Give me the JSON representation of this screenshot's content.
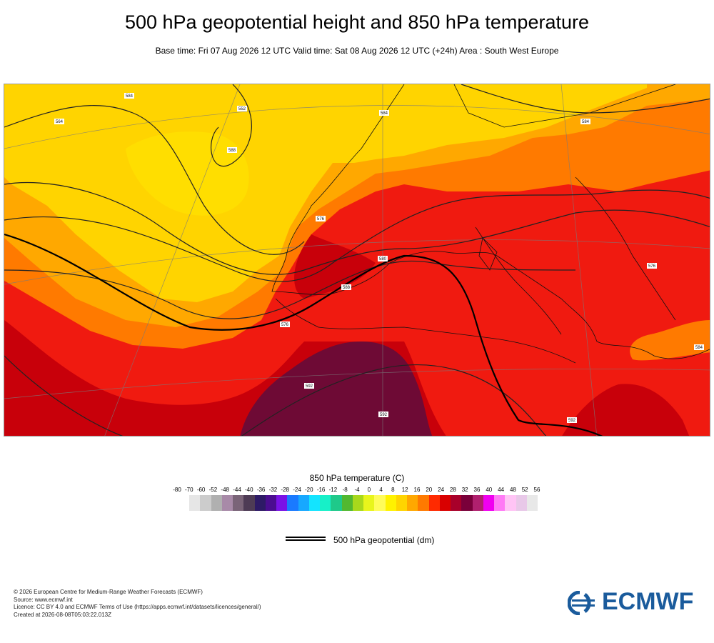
{
  "header": {
    "title": "500 hPa geopotential height and 850 hPa temperature",
    "subtitle": "Base time: Fri 07 Aug 2026 12 UTC Valid time: Sat 08 Aug 2026 12 UTC (+24h) Area : South West Europe"
  },
  "map": {
    "contour_labels": [
      "564",
      "552",
      "576",
      "580",
      "584",
      "588",
      "592",
      "576",
      "584",
      "592",
      "584",
      "592",
      "576",
      "588",
      "584"
    ]
  },
  "legend": {
    "title": "850 hPa temperature (C)",
    "ticks": [
      "-80",
      "-70",
      "-60",
      "-52",
      "-48",
      "-44",
      "-40",
      "-36",
      "-32",
      "-28",
      "-24",
      "-20",
      "-16",
      "-12",
      "-8",
      "-4",
      "0",
      "4",
      "8",
      "12",
      "16",
      "20",
      "24",
      "28",
      "32",
      "36",
      "40",
      "44",
      "48",
      "52",
      "56"
    ],
    "colors": [
      "#e6e6e6",
      "#cccccc",
      "#b0b0b0",
      "#a88aa8",
      "#7a6478",
      "#4e3b55",
      "#2e1a66",
      "#4b0d90",
      "#7a12e6",
      "#1a7aff",
      "#17a8ff",
      "#13e4ff",
      "#17f0c8",
      "#1fc98a",
      "#52b830",
      "#a8d81c",
      "#e8f51c",
      "#fffc5a",
      "#fff200",
      "#ffd400",
      "#ffa800",
      "#ff7a00",
      "#ff2a00",
      "#d90000",
      "#a8002a",
      "#7a003a",
      "#b0206e",
      "#f000f0",
      "#ff7af5",
      "#ffc4f5",
      "#e8c8e8",
      "#e8e8e8"
    ],
    "geo_label": "500 hPa geopotential (dm)"
  },
  "footer": {
    "lines": [
      "© 2026 European Centre for Medium-Range Weather Forecasts (ECMWF)",
      "Source: www.ecmwf.int",
      "Licence: CC BY 4.0 and ECMWF Terms of Use (https://apps.ecmwf.int/datasets/licences/general/)",
      "Created at 2026-08-08T05:03:22.013Z"
    ],
    "logo_text": "ECMWF",
    "logo_color": "#1a5b9c"
  }
}
